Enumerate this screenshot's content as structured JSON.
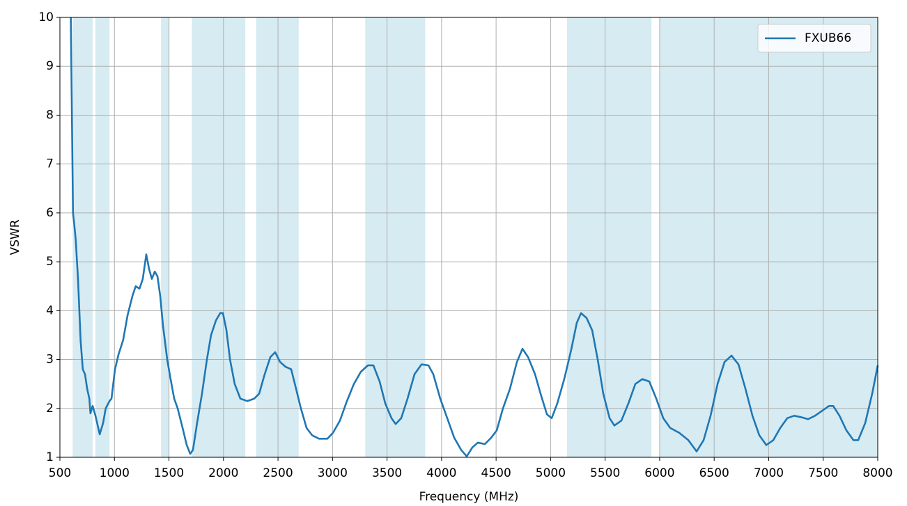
{
  "chart_data": {
    "type": "line",
    "xlabel": "Frequency (MHz)",
    "ylabel": "VSWR",
    "xlim": [
      500,
      8000
    ],
    "ylim": [
      1,
      10
    ],
    "xticks": [
      500,
      1000,
      1500,
      2000,
      2500,
      3000,
      3500,
      4000,
      4500,
      5000,
      5500,
      6000,
      6500,
      7000,
      7500,
      8000
    ],
    "yticks": [
      1,
      2,
      3,
      4,
      5,
      6,
      7,
      8,
      9,
      10
    ],
    "grid": true,
    "legend": "upper right",
    "span_color": "#add8e6",
    "spans": [
      [
        617,
        800
      ],
      [
        826,
        955
      ],
      [
        1427,
        1505
      ],
      [
        1710,
        2200
      ],
      [
        2300,
        2690
      ],
      [
        3300,
        3850
      ],
      [
        5150,
        5925
      ],
      [
        6000,
        8000
      ]
    ],
    "x": [
      600,
      620,
      630,
      645,
      666,
      690,
      710,
      730,
      750,
      770,
      780,
      800,
      826,
      865,
      896,
      920,
      955,
      973,
      1005,
      1037,
      1080,
      1120,
      1165,
      1195,
      1230,
      1260,
      1292,
      1318,
      1343,
      1370,
      1395,
      1420,
      1445,
      1484,
      1515,
      1548,
      1580,
      1625,
      1663,
      1695,
      1720,
      1758,
      1803,
      1848,
      1886,
      1931,
      1970,
      1995,
      2027,
      2060,
      2103,
      2155,
      2219,
      2282,
      2327,
      2378,
      2430,
      2474,
      2519,
      2570,
      2621,
      2666,
      2710,
      2762,
      2813,
      2876,
      2953,
      3004,
      3068,
      3132,
      3196,
      3260,
      3324,
      3375,
      3432,
      3484,
      3541,
      3579,
      3630,
      3688,
      3752,
      3816,
      3880,
      3924,
      3988,
      4052,
      4116,
      4180,
      4231,
      4282,
      4333,
      4397,
      4455,
      4506,
      4563,
      4627,
      4691,
      4742,
      4793,
      4857,
      4908,
      4966,
      5010,
      5061,
      5125,
      5189,
      5240,
      5279,
      5330,
      5381,
      5432,
      5483,
      5541,
      5585,
      5649,
      5713,
      5777,
      5841,
      5905,
      5969,
      6033,
      6097,
      6180,
      6263,
      6339,
      6403,
      6467,
      6531,
      6595,
      6659,
      6723,
      6787,
      6851,
      6914,
      6978,
      7042,
      7106,
      7170,
      7234,
      7298,
      7361,
      7425,
      7489,
      7553,
      7592,
      7649,
      7713,
      7777,
      7821,
      7885,
      7949,
      8000
    ],
    "series": [
      {
        "name": "FXUB66",
        "color": "#1f77b4",
        "values": [
          10,
          6.0,
          5.8,
          5.45,
          4.65,
          3.38,
          2.8,
          2.7,
          2.4,
          2.2,
          1.9,
          2.05,
          1.85,
          1.47,
          1.7,
          2.0,
          2.15,
          2.2,
          2.8,
          3.1,
          3.4,
          3.9,
          4.3,
          4.5,
          4.45,
          4.65,
          5.15,
          4.85,
          4.65,
          4.8,
          4.7,
          4.3,
          3.7,
          3.0,
          2.6,
          2.2,
          2.0,
          1.6,
          1.25,
          1.07,
          1.15,
          1.7,
          2.3,
          3.0,
          3.5,
          3.8,
          3.95,
          3.95,
          3.6,
          3.0,
          2.5,
          2.2,
          2.15,
          2.2,
          2.3,
          2.7,
          3.05,
          3.15,
          2.95,
          2.85,
          2.8,
          2.4,
          2.0,
          1.6,
          1.45,
          1.38,
          1.38,
          1.5,
          1.75,
          2.15,
          2.5,
          2.75,
          2.88,
          2.88,
          2.55,
          2.1,
          1.8,
          1.68,
          1.8,
          2.2,
          2.7,
          2.9,
          2.88,
          2.7,
          2.2,
          1.8,
          1.4,
          1.15,
          1.02,
          1.2,
          1.3,
          1.27,
          1.4,
          1.55,
          2.0,
          2.4,
          2.95,
          3.22,
          3.05,
          2.7,
          2.3,
          1.88,
          1.8,
          2.1,
          2.6,
          3.2,
          3.75,
          3.95,
          3.85,
          3.6,
          3.0,
          2.3,
          1.8,
          1.65,
          1.75,
          2.1,
          2.5,
          2.6,
          2.55,
          2.2,
          1.8,
          1.6,
          1.5,
          1.35,
          1.12,
          1.35,
          1.85,
          2.5,
          2.95,
          3.08,
          2.9,
          2.4,
          1.85,
          1.45,
          1.25,
          1.35,
          1.6,
          1.8,
          1.85,
          1.82,
          1.78,
          1.85,
          1.95,
          2.05,
          2.05,
          1.85,
          1.55,
          1.35,
          1.35,
          1.7,
          2.3,
          2.88
        ]
      }
    ]
  }
}
